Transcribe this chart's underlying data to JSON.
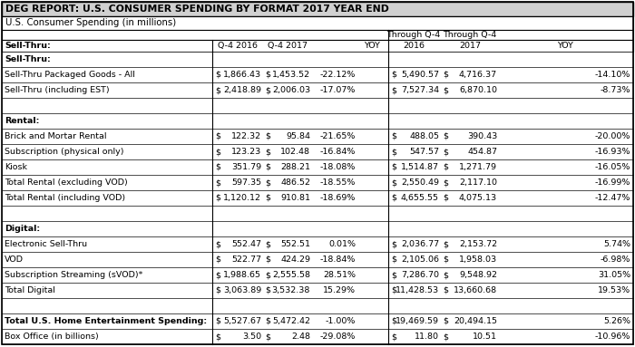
{
  "title": "DEG REPORT: U.S. CONSUMER SPENDING BY FORMAT 2017 YEAR END",
  "subtitle": "U.S. Consumer Spending (in millions)",
  "rows": [
    {
      "label": "Sell-Thru:",
      "bold": true,
      "section": true,
      "d0": "",
      "d1": "",
      "d2": "",
      "d3": "",
      "d4": "",
      "d5": "",
      "d6": "",
      "d7": "",
      "d8": "",
      "d9": ""
    },
    {
      "label": "Sell-Thru Packaged Goods - All",
      "bold": false,
      "section": false,
      "d0": "$",
      "d1": "1,866.43",
      "d2": "$",
      "d3": "1,453.52",
      "d4": "-22.12%",
      "d5": "$",
      "d6": "5,490.57",
      "d7": "$",
      "d8": "4,716.37",
      "d9": "-14.10%"
    },
    {
      "label": "Sell-Thru (including EST)",
      "bold": false,
      "section": false,
      "d0": "$",
      "d1": "2,418.89",
      "d2": "$",
      "d3": "2,006.03",
      "d4": "-17.07%",
      "d5": "$",
      "d6": "7,527.34",
      "d7": "$",
      "d8": "6,870.10",
      "d9": "-8.73%"
    },
    {
      "label": "",
      "bold": false,
      "section": true,
      "d0": "",
      "d1": "",
      "d2": "",
      "d3": "",
      "d4": "",
      "d5": "",
      "d6": "",
      "d7": "",
      "d8": "",
      "d9": ""
    },
    {
      "label": "Rental:",
      "bold": true,
      "section": true,
      "d0": "",
      "d1": "",
      "d2": "",
      "d3": "",
      "d4": "",
      "d5": "",
      "d6": "",
      "d7": "",
      "d8": "",
      "d9": ""
    },
    {
      "label": "Brick and Mortar Rental",
      "bold": false,
      "section": false,
      "d0": "$",
      "d1": "122.32",
      "d2": "$",
      "d3": "95.84",
      "d4": "-21.65%",
      "d5": "$",
      "d6": "488.05",
      "d7": "$",
      "d8": "390.43",
      "d9": "-20.00%"
    },
    {
      "label": "Subscription (physical only)",
      "bold": false,
      "section": false,
      "d0": "$",
      "d1": "123.23",
      "d2": "$",
      "d3": "102.48",
      "d4": "-16.84%",
      "d5": "$",
      "d6": "547.57",
      "d7": "$",
      "d8": "454.87",
      "d9": "-16.93%"
    },
    {
      "label": "Kiosk",
      "bold": false,
      "section": false,
      "d0": "$",
      "d1": "351.79",
      "d2": "$",
      "d3": "288.21",
      "d4": "-18.08%",
      "d5": "$",
      "d6": "1,514.87",
      "d7": "$",
      "d8": "1,271.79",
      "d9": "-16.05%"
    },
    {
      "label": "Total Rental (excluding VOD)",
      "bold": false,
      "section": false,
      "d0": "$",
      "d1": "597.35",
      "d2": "$",
      "d3": "486.52",
      "d4": "-18.55%",
      "d5": "$",
      "d6": "2,550.49",
      "d7": "$",
      "d8": "2,117.10",
      "d9": "-16.99%"
    },
    {
      "label": "Total Rental (including VOD)",
      "bold": false,
      "section": false,
      "d0": "$",
      "d1": "1,120.12",
      "d2": "$",
      "d3": "910.81",
      "d4": "-18.69%",
      "d5": "$",
      "d6": "4,655.55",
      "d7": "$",
      "d8": "4,075.13",
      "d9": "-12.47%"
    },
    {
      "label": "",
      "bold": false,
      "section": true,
      "d0": "",
      "d1": "",
      "d2": "",
      "d3": "",
      "d4": "",
      "d5": "",
      "d6": "",
      "d7": "",
      "d8": "",
      "d9": ""
    },
    {
      "label": "Digital:",
      "bold": true,
      "section": true,
      "d0": "",
      "d1": "",
      "d2": "",
      "d3": "",
      "d4": "",
      "d5": "",
      "d6": "",
      "d7": "",
      "d8": "",
      "d9": ""
    },
    {
      "label": "Electronic Sell-Thru",
      "bold": false,
      "section": false,
      "d0": "$",
      "d1": "552.47",
      "d2": "$",
      "d3": "552.51",
      "d4": "0.01%",
      "d5": "$",
      "d6": "2,036.77",
      "d7": "$",
      "d8": "2,153.72",
      "d9": "5.74%"
    },
    {
      "label": "VOD",
      "bold": false,
      "section": false,
      "d0": "$",
      "d1": "522.77",
      "d2": "$",
      "d3": "424.29",
      "d4": "-18.84%",
      "d5": "$",
      "d6": "2,105.06",
      "d7": "$",
      "d8": "1,958.03",
      "d9": "-6.98%"
    },
    {
      "label": "Subscription Streaming (sVOD)*",
      "bold": false,
      "section": false,
      "d0": "$",
      "d1": "1,988.65",
      "d2": "$",
      "d3": "2,555.58",
      "d4": "28.51%",
      "d5": "$",
      "d6": "7,286.70",
      "d7": "$",
      "d8": "9,548.92",
      "d9": "31.05%"
    },
    {
      "label": "Total Digital",
      "bold": false,
      "section": false,
      "d0": "$",
      "d1": "3,063.89",
      "d2": "$",
      "d3": "3,532.38",
      "d4": "15.29%",
      "d5": "$",
      "d6": "11,428.53",
      "d7": "$",
      "d8": "13,660.68",
      "d9": "19.53%"
    },
    {
      "label": "",
      "bold": false,
      "section": true,
      "d0": "",
      "d1": "",
      "d2": "",
      "d3": "",
      "d4": "",
      "d5": "",
      "d6": "",
      "d7": "",
      "d8": "",
      "d9": ""
    },
    {
      "label": "Total U.S. Home Entertainment Spending:",
      "bold": true,
      "section": false,
      "d0": "$",
      "d1": "5,527.67",
      "d2": "$",
      "d3": "5,472.42",
      "d4": "-1.00%",
      "d5": "$",
      "d6": "19,469.59",
      "d7": "$",
      "d8": "20,494.15",
      "d9": "5.26%"
    },
    {
      "label": "Box Office (in billions)",
      "bold": false,
      "section": false,
      "d0": "$",
      "d1": "3.50",
      "d2": "$",
      "d3": "2.48",
      "d4": "-29.08%",
      "d5": "$",
      "d6": "11.80",
      "d7": "$",
      "d8": "10.51",
      "d9": "-10.96%"
    }
  ],
  "title_bg": "#d0d0d0",
  "subtitle_bg": "#ffffff",
  "header_bg": "#ffffff",
  "border_color": "#000000",
  "title_fontsize": 7.8,
  "body_fontsize": 6.8
}
